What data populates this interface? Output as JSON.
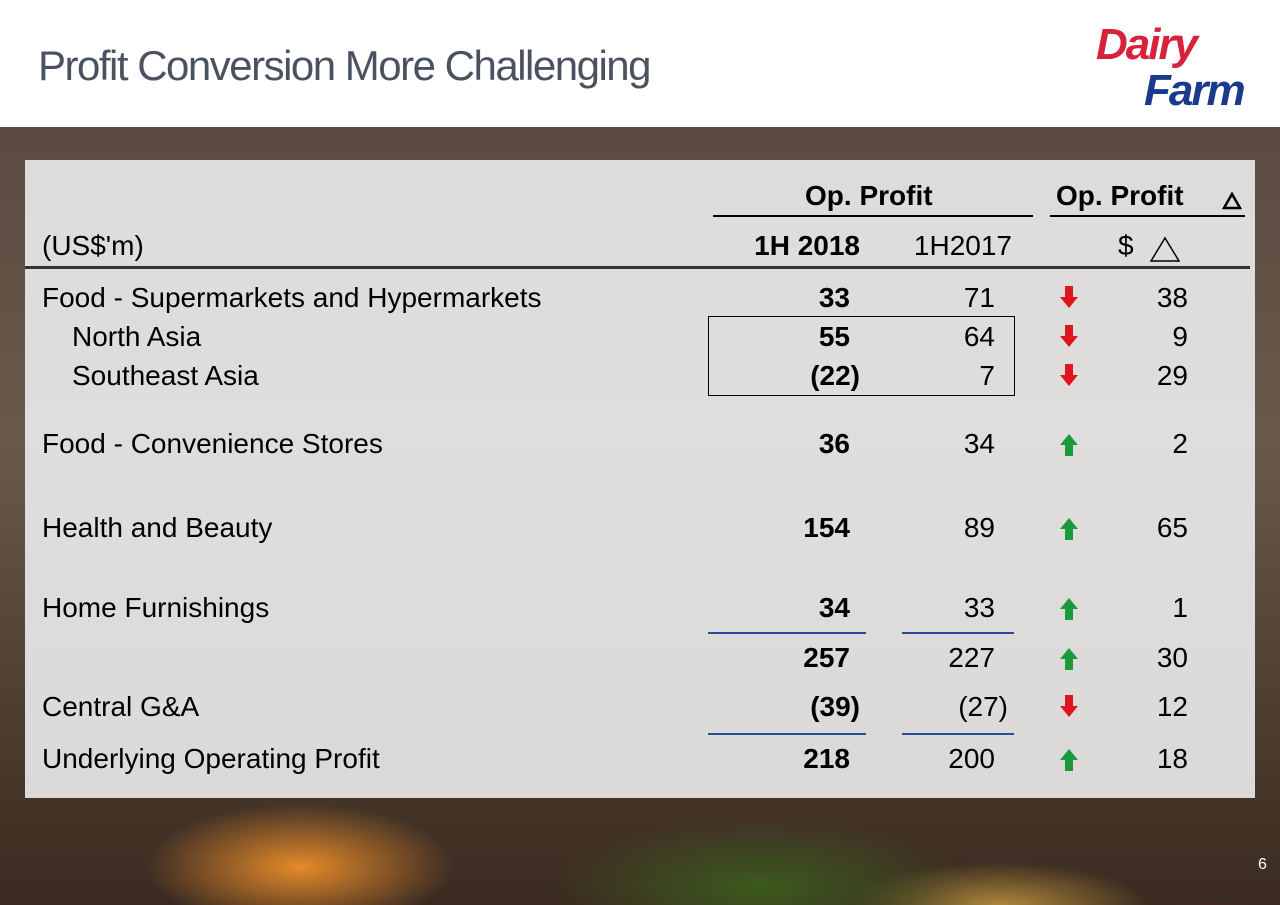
{
  "title": "Profit Conversion More Challenging",
  "logo": {
    "line1": "Dairy",
    "line2": "Farm"
  },
  "header": {
    "group1": "Op. Profit",
    "group2": "Op. Profit",
    "units": "(US$'m)",
    "col1": "1H 2018",
    "col2": "1H2017",
    "col3": "$"
  },
  "rows": [
    {
      "label": "Food - Supermarkets and Hypermarkets",
      "v2018": "33",
      "v2017": "71",
      "dir": "down",
      "delta": "38"
    },
    {
      "label": "North Asia",
      "v2018": "55",
      "v2017": "64",
      "dir": "down",
      "delta": "9"
    },
    {
      "label": "Southeast Asia",
      "v2018": "(22)",
      "v2017": "7",
      "dir": "down",
      "delta": "29"
    },
    {
      "label": "Food - Convenience Stores",
      "v2018": "36",
      "v2017": "34",
      "dir": "up",
      "delta": "2"
    },
    {
      "label": "Health and Beauty",
      "v2018": "154",
      "v2017": "89",
      "dir": "up",
      "delta": "65"
    },
    {
      "label": "Home Furnishings",
      "v2018": "34",
      "v2017": "33",
      "dir": "up",
      "delta": "1"
    },
    {
      "label": "",
      "v2018": "257",
      "v2017": "227",
      "dir": "up",
      "delta": "30"
    },
    {
      "label": "Central G&A",
      "v2018": "(39)",
      "v2017": "(27)",
      "dir": "down",
      "delta": "12"
    },
    {
      "label": "Underlying Operating Profit",
      "v2018": "218",
      "v2017": "200",
      "dir": "up",
      "delta": "18"
    }
  ],
  "colors": {
    "up": "#1a9a3a",
    "down": "#e0141e",
    "title": "#4a5260",
    "underline": "#2a4a9a"
  },
  "page_number": "6"
}
